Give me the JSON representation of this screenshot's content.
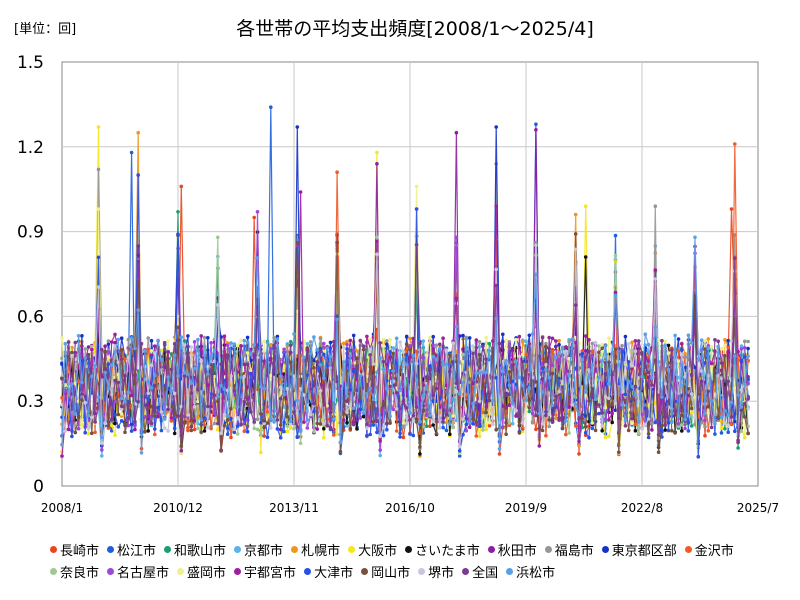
{
  "chart_data": {
    "type": "line",
    "title": "各世帯の平均支出頻度[2008/1～2025/4]",
    "unit_label": "[単位：回]",
    "xlabel": "",
    "ylabel": "",
    "ylim": [
      0,
      1.5
    ],
    "yticks": [
      "0",
      "0.3",
      "0.6",
      "0.9",
      "1.2",
      "1.5"
    ],
    "xticks": [
      "2008/1",
      "2010/12",
      "2013/11",
      "2016/10",
      "2019/9",
      "2022/8",
      "2025/7"
    ],
    "xrange": [
      "2008/1",
      "2025/7"
    ],
    "period": [
      "2008/1",
      "2025/4"
    ],
    "grid": true,
    "legend_position": "bottom",
    "series": [
      {
        "name": "長崎市",
        "color": "#e8461e",
        "peaks": [
          [
            "2011/1",
            1.06
          ],
          [
            "2012/11",
            0.95
          ],
          [
            "2024/11",
            0.98
          ]
        ]
      },
      {
        "name": "松江市",
        "color": "#1f5fdc",
        "peaks": [
          [
            "2009/10",
            1.18
          ],
          [
            "2013/4",
            1.34
          ],
          [
            "2019/12",
            1.28
          ]
        ]
      },
      {
        "name": "和歌山市",
        "color": "#1aa06e",
        "peaks": [
          [
            "2010/12",
            0.97
          ],
          [
            "2015/12",
            0.85
          ]
        ]
      },
      {
        "name": "京都市",
        "color": "#5ab4e6",
        "peaks": [
          [
            "2014/12",
            0.84
          ],
          [
            "2021/12",
            0.8
          ]
        ]
      },
      {
        "name": "札幌市",
        "color": "#f0961e",
        "peaks": [
          [
            "2009/12",
            1.25
          ],
          [
            "2016/12",
            0.98
          ],
          [
            "2020/12",
            0.96
          ]
        ]
      },
      {
        "name": "大阪市",
        "color": "#f5e61e",
        "peaks": [
          [
            "2008/12",
            1.27
          ],
          [
            "2015/12",
            1.18
          ],
          [
            "2021/3",
            0.99
          ]
        ]
      },
      {
        "name": "さいたま市",
        "color": "#111111",
        "peaks": [
          [
            "2014/12",
            0.68
          ],
          [
            "2021/3",
            0.81
          ]
        ]
      },
      {
        "name": "秋田市",
        "color": "#8c1ea0",
        "peaks": [
          [
            "2015/12",
            1.14
          ],
          [
            "2017/12",
            1.25
          ],
          [
            "2019/12",
            1.26
          ]
        ]
      },
      {
        "name": "福島市",
        "color": "#969696",
        "peaks": [
          [
            "2008/12",
            1.12
          ],
          [
            "2018/12",
            1.14
          ],
          [
            "2022/12",
            0.99
          ]
        ]
      },
      {
        "name": "東京都区部",
        "color": "#1432c8",
        "peaks": [
          [
            "2013/12",
            1.27
          ],
          [
            "2018/12",
            1.27
          ]
        ]
      },
      {
        "name": "金沢市",
        "color": "#f05a28",
        "peaks": [
          [
            "2014/12",
            1.11
          ],
          [
            "2024/12",
            1.21
          ]
        ]
      },
      {
        "name": "奈良市",
        "color": "#a0c896",
        "peaks": [
          [
            "2011/12",
            0.88
          ]
        ]
      },
      {
        "name": "名古屋市",
        "color": "#a046dc",
        "peaks": [
          [
            "2012/12",
            0.97
          ],
          [
            "2017/12",
            0.88
          ]
        ]
      },
      {
        "name": "盛岡市",
        "color": "#f0f08c",
        "peaks": [
          [
            "2008/12",
            0.98
          ],
          [
            "2016/12",
            1.06
          ]
        ]
      },
      {
        "name": "宇都宮市",
        "color": "#a01ea0",
        "peaks": [
          [
            "2014/1",
            1.04
          ],
          [
            "2018/12",
            0.99
          ]
        ]
      },
      {
        "name": "大津市",
        "color": "#2850e6",
        "peaks": [
          [
            "2009/12",
            1.1
          ],
          [
            "2016/12",
            0.98
          ]
        ]
      },
      {
        "name": "岡山市",
        "color": "#78503c",
        "peaks": [
          [
            "2013/12",
            0.86
          ]
        ]
      },
      {
        "name": "堺市",
        "color": "#c8c8dc",
        "peaks": [
          [
            "2015/12",
            0.82
          ]
        ]
      },
      {
        "name": "全国",
        "color": "#7a3c8c",
        "peaks": [
          [
            "2012/12",
            0.66
          ]
        ]
      },
      {
        "name": "浜松市",
        "color": "#5aa0e6",
        "peaks": [
          [
            "2023/12",
            0.88
          ]
        ]
      }
    ]
  }
}
